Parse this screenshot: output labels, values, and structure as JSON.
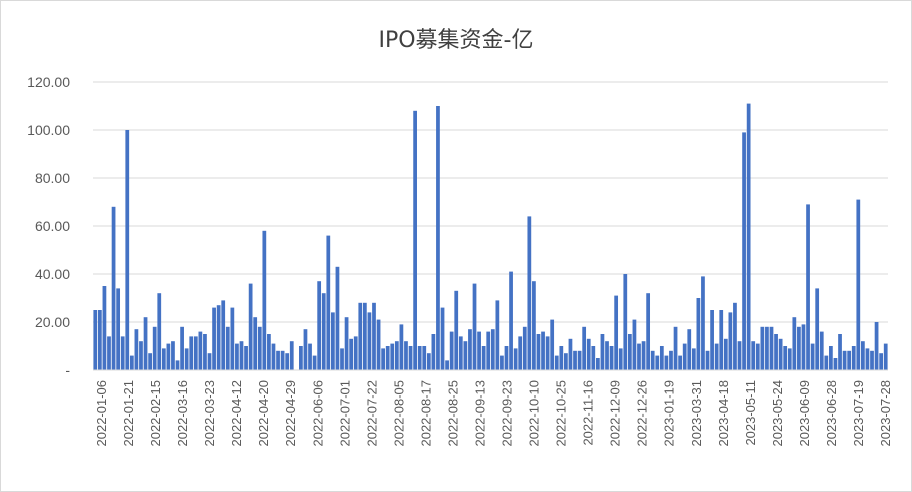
{
  "chart_data": {
    "type": "bar",
    "title": "IPO募集资金-亿",
    "ylim": [
      0,
      120
    ],
    "y_ticks": [
      "-",
      "20.00",
      "40.00",
      "60.00",
      "80.00",
      "100.00",
      "120.00"
    ],
    "grid": true,
    "legend": "none",
    "color": "#4472C4",
    "x_tick_labels": [
      "2022-01-06",
      "2022-01-21",
      "2022-02-15",
      "2022-03-16",
      "2022-03-23",
      "2022-04-12",
      "2022-04-20",
      "2022-04-29",
      "2022-06-06",
      "2022-07-01",
      "2022-07-22",
      "2022-08-05",
      "2022-08-17",
      "2022-08-25",
      "2022-09-13",
      "2022-09-23",
      "2022-10-10",
      "2022-10-25",
      "2022-11-16",
      "2022-12-09",
      "2022-12-26",
      "2023-01-19",
      "2023-03-31",
      "2023-04-18",
      "2023-05-11",
      "2023-05-24",
      "2023-06-09",
      "2023-06-28",
      "2023-07-19",
      "2023-07-28"
    ],
    "values": [
      25,
      25,
      35,
      14,
      68,
      34,
      14,
      100,
      6,
      17,
      12,
      22,
      7,
      18,
      32,
      9,
      11,
      12,
      4,
      18,
      9,
      14,
      14,
      16,
      15,
      7,
      26,
      27,
      29,
      18,
      26,
      11,
      12,
      10,
      36,
      22,
      18,
      58,
      15,
      11,
      8,
      8,
      7,
      12,
      0,
      10,
      17,
      11,
      6,
      37,
      32,
      56,
      24,
      43,
      9,
      22,
      13,
      14,
      28,
      28,
      24,
      28,
      21,
      9,
      10,
      11,
      12,
      19,
      12,
      10,
      108,
      10,
      10,
      7,
      15,
      110,
      26,
      4,
      16,
      33,
      14,
      12,
      17,
      36,
      16,
      10,
      16,
      17,
      29,
      6,
      10,
      41,
      9,
      14,
      18,
      64,
      37,
      15,
      16,
      14,
      21,
      6,
      10,
      7,
      13,
      8,
      8,
      18,
      13,
      10,
      5,
      15,
      12,
      10,
      31,
      9,
      40,
      15,
      21,
      11,
      12,
      32,
      8,
      6,
      10,
      6,
      8,
      18,
      6,
      11,
      17,
      9,
      30,
      39,
      8,
      25,
      11,
      25,
      13,
      24,
      28,
      12,
      99,
      111,
      12,
      11,
      18,
      18,
      18,
      15,
      13,
      10,
      9,
      22,
      18,
      19,
      69,
      11,
      34,
      16,
      6,
      10,
      5,
      15,
      8,
      8,
      10,
      71,
      12,
      9,
      8,
      20,
      7,
      11
    ]
  }
}
